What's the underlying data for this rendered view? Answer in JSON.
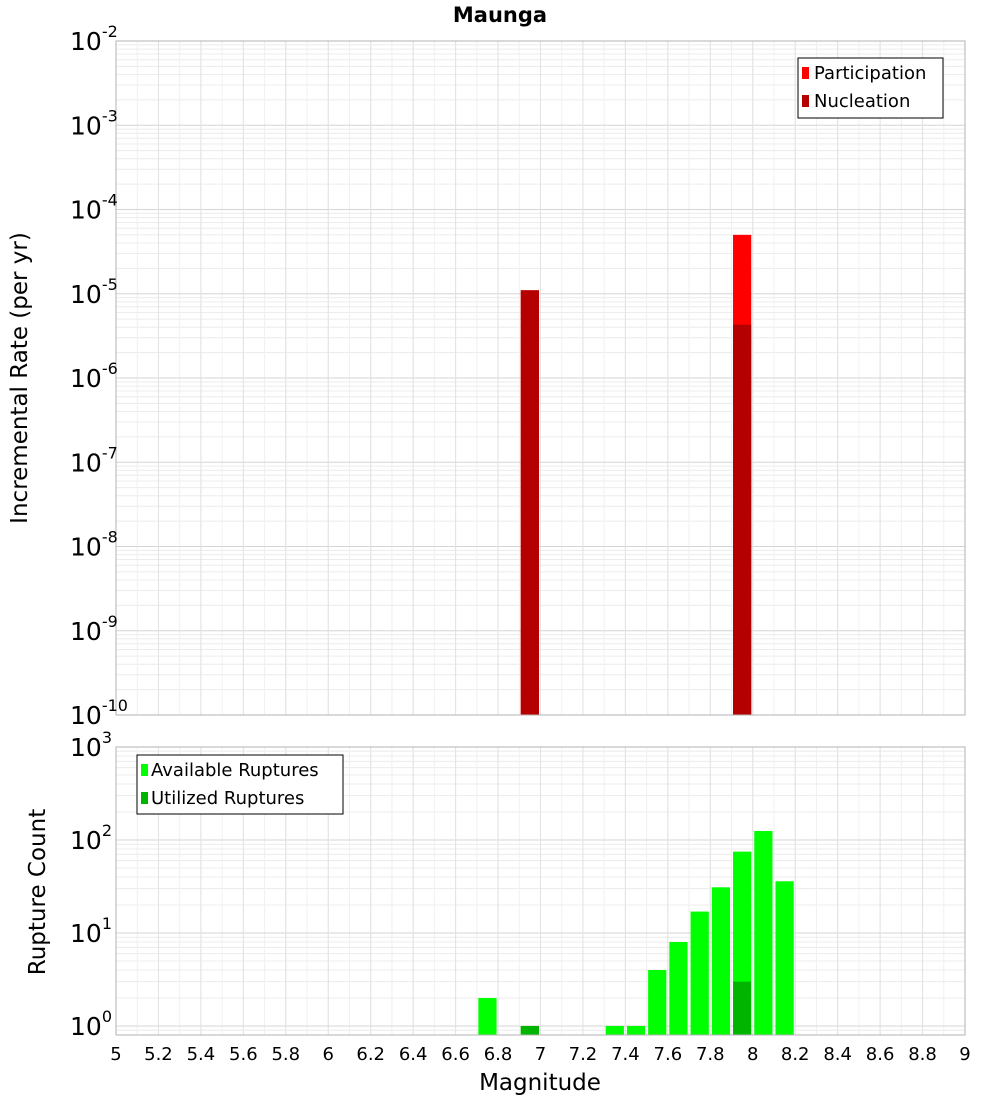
{
  "chart_data": [
    {
      "type": "bar",
      "title": "Maunga",
      "xlabel": "",
      "ylabel": "Incremental Rate (per yr)",
      "yscale": "log",
      "ylim": [
        1e-10,
        0.01
      ],
      "xlim": [
        5,
        9
      ],
      "bar_width": 0.1,
      "grid": true,
      "legend_placement": "top-right",
      "yticks": [
        {
          "base": "10",
          "exp": "-10"
        },
        {
          "base": "10",
          "exp": "-9"
        },
        {
          "base": "10",
          "exp": "-8"
        },
        {
          "base": "10",
          "exp": "-7"
        },
        {
          "base": "10",
          "exp": "-6"
        },
        {
          "base": "10",
          "exp": "-5"
        },
        {
          "base": "10",
          "exp": "-4"
        },
        {
          "base": "10",
          "exp": "-3"
        },
        {
          "base": "10",
          "exp": "-2"
        }
      ],
      "series": [
        {
          "name": "Participation",
          "color": "#ff0000",
          "points": [
            {
              "x": 6.95,
              "y": 1.1e-05
            },
            {
              "x": 7.95,
              "y": 5e-05
            }
          ]
        },
        {
          "name": "Nucleation",
          "color": "#b40000",
          "points": [
            {
              "x": 6.95,
              "y": 1.1e-05
            },
            {
              "x": 7.95,
              "y": 4.3e-06
            }
          ]
        }
      ]
    },
    {
      "type": "bar",
      "title": "",
      "xlabel": "Magnitude",
      "ylabel": "Rupture Count",
      "yscale": "log",
      "ylim": [
        0.8,
        1000
      ],
      "xlim": [
        5,
        9
      ],
      "bar_width": 0.1,
      "grid": true,
      "legend_placement": "top-left",
      "xticks": [
        "5",
        "5.2",
        "5.4",
        "5.6",
        "5.8",
        "6",
        "6.2",
        "6.4",
        "6.6",
        "6.8",
        "7",
        "7.2",
        "7.4",
        "7.6",
        "7.8",
        "8",
        "8.2",
        "8.4",
        "8.6",
        "8.8",
        "9"
      ],
      "yticks": [
        {
          "base": "10",
          "exp": "0"
        },
        {
          "base": "10",
          "exp": "1"
        },
        {
          "base": "10",
          "exp": "2"
        },
        {
          "base": "10",
          "exp": "3"
        }
      ],
      "series": [
        {
          "name": "Available Ruptures",
          "color": "#00ff00",
          "points": [
            {
              "x": 6.75,
              "y": 2
            },
            {
              "x": 6.95,
              "y": 1
            },
            {
              "x": 7.35,
              "y": 1
            },
            {
              "x": 7.45,
              "y": 1
            },
            {
              "x": 7.55,
              "y": 4
            },
            {
              "x": 7.65,
              "y": 8
            },
            {
              "x": 7.75,
              "y": 17
            },
            {
              "x": 7.85,
              "y": 31
            },
            {
              "x": 7.95,
              "y": 75
            },
            {
              "x": 8.05,
              "y": 125
            },
            {
              "x": 8.15,
              "y": 36
            }
          ]
        },
        {
          "name": "Utilized Ruptures",
          "color": "#00b400",
          "points": [
            {
              "x": 6.95,
              "y": 1
            },
            {
              "x": 7.95,
              "y": 3
            }
          ]
        }
      ]
    }
  ]
}
